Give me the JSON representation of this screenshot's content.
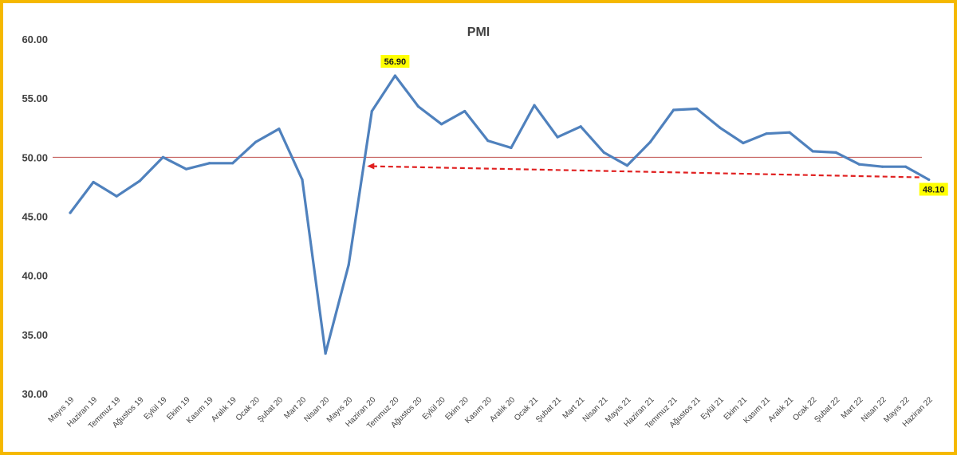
{
  "chart_data": {
    "type": "line",
    "title": "PMI",
    "xlabel": "",
    "ylabel": "",
    "ylim": [
      30,
      60
    ],
    "yticks": [
      "30.00",
      "35.00",
      "40.00",
      "45.00",
      "50.00",
      "55.00",
      "60.00"
    ],
    "grid": false,
    "legend": "none",
    "categories": [
      "Mayıs 19",
      "Haziran 19",
      "Temmuz 19",
      "Ağustos 19",
      "Eylül 19",
      "Ekim 19",
      "Kasım 19",
      "Aralık 19",
      "Ocak 20",
      "Şubat 20",
      "Mart 20",
      "Nisan 20",
      "Mayıs 20",
      "Haziran 20",
      "Temmuz 20",
      "Ağustos 20",
      "Eylül 20",
      "Ekim 20",
      "Kasım 20",
      "Aralık 20",
      "Ocak 21",
      "Şubat 21",
      "Mart 21",
      "Nisan 21",
      "Mayıs 21",
      "Haziran 21",
      "Temmuz 21",
      "Ağustos 21",
      "Eylül 21",
      "Ekim 21",
      "Kasım 21",
      "Aralık 21",
      "Ocak 22",
      "Şubat 22",
      "Mart 22",
      "Nisan 22",
      "Mayıs 22",
      "Haziran 22"
    ],
    "series": [
      {
        "values": [
          45.3,
          47.9,
          46.7,
          48.0,
          50.0,
          49.0,
          49.5,
          49.5,
          51.3,
          52.4,
          48.1,
          33.4,
          40.9,
          53.9,
          56.9,
          54.3,
          52.8,
          53.9,
          51.4,
          50.8,
          54.4,
          51.7,
          52.6,
          50.4,
          49.3,
          51.3,
          54.0,
          54.1,
          52.5,
          51.2,
          52.0,
          52.1,
          50.5,
          50.4,
          49.4,
          49.2,
          49.2,
          48.1
        ],
        "color": "#4f81bd"
      }
    ],
    "reference_line": {
      "value": 50,
      "color": "#c0504d"
    },
    "annotations": [
      {
        "category": "Temmuz 20",
        "value": 56.9,
        "text": "56.90",
        "background": "#ffff00"
      },
      {
        "category": "Haziran 22",
        "value": 48.1,
        "text": "48.10",
        "background": "#ffff00"
      }
    ],
    "arrow": {
      "from": "Haziran 22",
      "to": "Haziran 20",
      "value": 48.1,
      "style": "dashed",
      "color": "#e02020"
    }
  }
}
